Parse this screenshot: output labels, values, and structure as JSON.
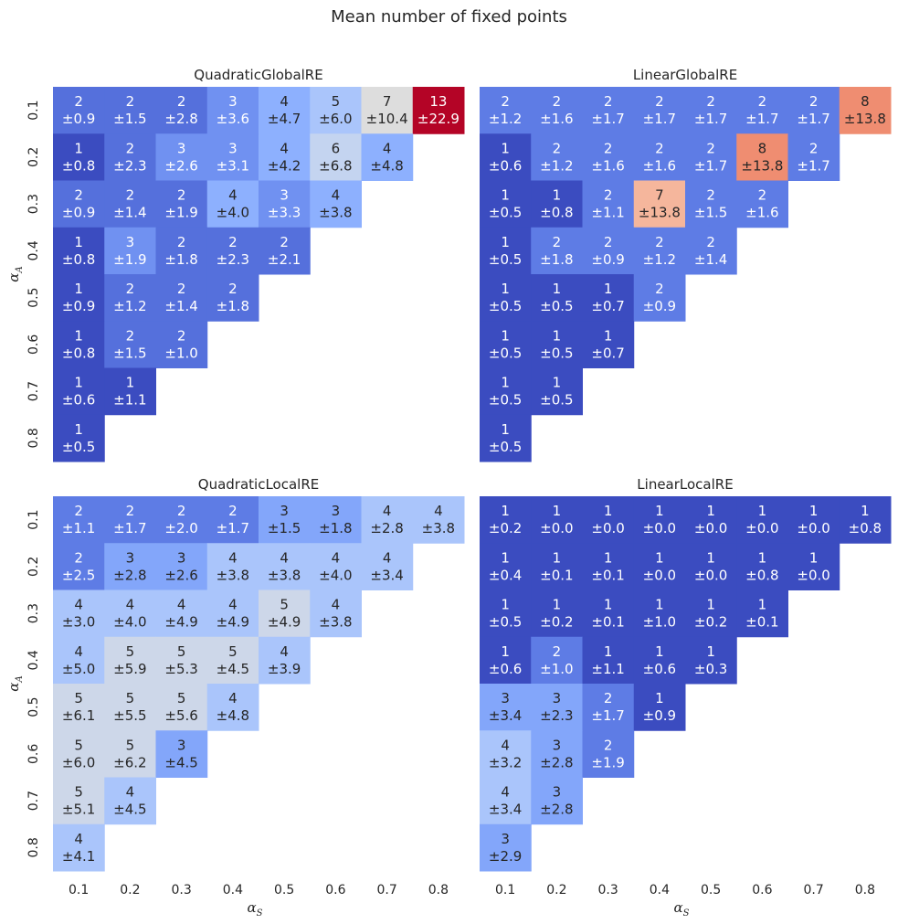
{
  "figure": {
    "title": "Mean number of fixed points",
    "xlabel_main": "α",
    "xlabel_sub": "S",
    "ylabel_main": "α",
    "ylabel_sub": "A"
  },
  "chart_data": [
    {
      "type": "heatmap",
      "title": "QuadraticGlobalRE",
      "x_categories": [
        "0.1",
        "0.2",
        "0.3",
        "0.4",
        "0.5",
        "0.6",
        "0.7",
        "0.8"
      ],
      "y_categories": [
        "0.1",
        "0.2",
        "0.3",
        "0.4",
        "0.5",
        "0.6",
        "0.7",
        "0.8"
      ],
      "mean": [
        [
          2,
          2,
          2,
          3,
          4,
          5,
          7,
          13
        ],
        [
          1,
          2,
          3,
          3,
          4,
          6,
          4,
          null
        ],
        [
          2,
          2,
          2,
          4,
          3,
          4,
          null,
          null
        ],
        [
          1,
          3,
          2,
          2,
          2,
          null,
          null,
          null
        ],
        [
          1,
          2,
          2,
          2,
          null,
          null,
          null,
          null
        ],
        [
          1,
          2,
          2,
          null,
          null,
          null,
          null,
          null
        ],
        [
          1,
          1,
          null,
          null,
          null,
          null,
          null,
          null
        ],
        [
          1,
          null,
          null,
          null,
          null,
          null,
          null,
          null
        ]
      ],
      "std": [
        [
          0.9,
          1.5,
          2.8,
          3.6,
          4.7,
          6.0,
          10.4,
          22.9
        ],
        [
          0.8,
          2.3,
          2.6,
          3.1,
          4.2,
          6.8,
          4.8,
          null
        ],
        [
          0.9,
          1.4,
          1.9,
          4.0,
          3.3,
          3.8,
          null,
          null
        ],
        [
          0.8,
          1.9,
          1.8,
          2.3,
          2.1,
          null,
          null,
          null
        ],
        [
          0.9,
          1.2,
          1.4,
          1.8,
          null,
          null,
          null,
          null
        ],
        [
          0.8,
          1.5,
          1.0,
          null,
          null,
          null,
          null,
          null
        ],
        [
          0.6,
          1.1,
          null,
          null,
          null,
          null,
          null,
          null
        ],
        [
          0.5,
          null,
          null,
          null,
          null,
          null,
          null,
          null
        ]
      ],
      "colorbar_range": [
        1,
        13
      ],
      "colormap": "coolwarm",
      "ylabel": "α_A",
      "xlabel": ""
    },
    {
      "type": "heatmap",
      "title": "LinearGlobalRE",
      "x_categories": [
        "0.1",
        "0.2",
        "0.3",
        "0.4",
        "0.5",
        "0.6",
        "0.7",
        "0.8"
      ],
      "y_categories": [
        "0.1",
        "0.2",
        "0.3",
        "0.4",
        "0.5",
        "0.6",
        "0.7",
        "0.8"
      ],
      "mean": [
        [
          2,
          2,
          2,
          2,
          2,
          2,
          2,
          8
        ],
        [
          1,
          2,
          2,
          2,
          2,
          8,
          2,
          null
        ],
        [
          1,
          1,
          2,
          7,
          2,
          2,
          null,
          null
        ],
        [
          1,
          2,
          2,
          2,
          2,
          null,
          null,
          null
        ],
        [
          1,
          1,
          1,
          2,
          null,
          null,
          null,
          null
        ],
        [
          1,
          1,
          1,
          null,
          null,
          null,
          null,
          null
        ],
        [
          1,
          1,
          null,
          null,
          null,
          null,
          null,
          null
        ],
        [
          1,
          null,
          null,
          null,
          null,
          null,
          null,
          null
        ]
      ],
      "std": [
        [
          1.2,
          1.6,
          1.7,
          1.7,
          1.7,
          1.7,
          1.7,
          13.8
        ],
        [
          0.6,
          1.2,
          1.6,
          1.6,
          1.7,
          13.8,
          1.7,
          null
        ],
        [
          0.5,
          0.8,
          1.1,
          13.8,
          1.5,
          1.6,
          null,
          null
        ],
        [
          0.5,
          1.8,
          0.9,
          1.2,
          1.4,
          null,
          null,
          null
        ],
        [
          0.5,
          0.5,
          0.7,
          0.9,
          null,
          null,
          null,
          null
        ],
        [
          0.5,
          0.5,
          0.7,
          null,
          null,
          null,
          null,
          null
        ],
        [
          0.5,
          0.5,
          null,
          null,
          null,
          null,
          null,
          null
        ],
        [
          0.5,
          null,
          null,
          null,
          null,
          null,
          null,
          null
        ]
      ],
      "colorbar_range": [
        1,
        10
      ],
      "colormap": "coolwarm",
      "ylabel": "",
      "xlabel": ""
    },
    {
      "type": "heatmap",
      "title": "QuadraticLocalRE",
      "x_categories": [
        "0.1",
        "0.2",
        "0.3",
        "0.4",
        "0.5",
        "0.6",
        "0.7",
        "0.8"
      ],
      "y_categories": [
        "0.1",
        "0.2",
        "0.3",
        "0.4",
        "0.5",
        "0.6",
        "0.7",
        "0.8"
      ],
      "mean": [
        [
          2,
          2,
          2,
          2,
          3,
          3,
          4,
          4
        ],
        [
          2,
          3,
          3,
          4,
          4,
          4,
          4,
          null
        ],
        [
          4,
          4,
          4,
          4,
          5,
          4,
          null,
          null
        ],
        [
          4,
          5,
          5,
          5,
          4,
          null,
          null,
          null
        ],
        [
          5,
          5,
          5,
          4,
          null,
          null,
          null,
          null
        ],
        [
          5,
          5,
          3,
          null,
          null,
          null,
          null,
          null
        ],
        [
          5,
          4,
          null,
          null,
          null,
          null,
          null,
          null
        ],
        [
          4,
          null,
          null,
          null,
          null,
          null,
          null,
          null
        ]
      ],
      "std": [
        [
          1.1,
          1.7,
          2.0,
          1.7,
          1.5,
          1.8,
          2.8,
          3.8
        ],
        [
          2.5,
          2.8,
          2.6,
          3.8,
          3.8,
          4.0,
          3.4,
          null
        ],
        [
          3.0,
          4.0,
          4.9,
          4.9,
          4.9,
          3.8,
          null,
          null
        ],
        [
          5.0,
          5.9,
          5.3,
          4.5,
          3.9,
          null,
          null,
          null
        ],
        [
          6.1,
          5.5,
          5.6,
          4.8,
          null,
          null,
          null,
          null
        ],
        [
          6.0,
          6.2,
          4.5,
          null,
          null,
          null,
          null,
          null
        ],
        [
          5.1,
          4.5,
          null,
          null,
          null,
          null,
          null,
          null
        ],
        [
          4.1,
          null,
          null,
          null,
          null,
          null,
          null,
          null
        ]
      ],
      "colorbar_range": [
        1,
        10
      ],
      "colormap": "coolwarm",
      "ylabel": "α_A",
      "xlabel": "α_S"
    },
    {
      "type": "heatmap",
      "title": "LinearLocalRE",
      "x_categories": [
        "0.1",
        "0.2",
        "0.3",
        "0.4",
        "0.5",
        "0.6",
        "0.7",
        "0.8"
      ],
      "y_categories": [
        "0.1",
        "0.2",
        "0.3",
        "0.4",
        "0.5",
        "0.6",
        "0.7",
        "0.8"
      ],
      "mean": [
        [
          1,
          1,
          1,
          1,
          1,
          1,
          1,
          1
        ],
        [
          1,
          1,
          1,
          1,
          1,
          1,
          1,
          null
        ],
        [
          1,
          1,
          1,
          1,
          1,
          1,
          null,
          null
        ],
        [
          1,
          2,
          1,
          1,
          1,
          null,
          null,
          null
        ],
        [
          3,
          3,
          2,
          1,
          null,
          null,
          null,
          null
        ],
        [
          4,
          3,
          2,
          null,
          null,
          null,
          null,
          null
        ],
        [
          4,
          3,
          null,
          null,
          null,
          null,
          null,
          null
        ],
        [
          3,
          null,
          null,
          null,
          null,
          null,
          null,
          null
        ]
      ],
      "std": [
        [
          0.2,
          0.0,
          0.0,
          0.0,
          0.0,
          0.0,
          0.0,
          0.8
        ],
        [
          0.4,
          0.1,
          0.1,
          0.0,
          0.0,
          0.8,
          0.0,
          null
        ],
        [
          0.5,
          0.2,
          0.1,
          1.0,
          0.2,
          0.1,
          null,
          null
        ],
        [
          0.6,
          1.0,
          1.1,
          0.6,
          0.3,
          null,
          null,
          null
        ],
        [
          3.4,
          2.3,
          1.7,
          0.9,
          null,
          null,
          null,
          null
        ],
        [
          3.2,
          2.8,
          1.9,
          null,
          null,
          null,
          null,
          null
        ],
        [
          3.4,
          2.8,
          null,
          null,
          null,
          null,
          null,
          null
        ],
        [
          2.9,
          null,
          null,
          null,
          null,
          null,
          null,
          null
        ]
      ],
      "colorbar_range": [
        1,
        10
      ],
      "colormap": "coolwarm",
      "ylabel": "",
      "xlabel": "α_S"
    }
  ]
}
